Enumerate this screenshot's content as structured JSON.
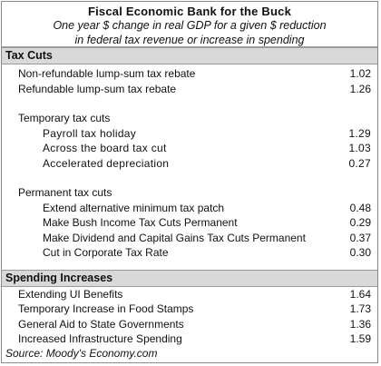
{
  "header": {
    "title": "Fiscal Economic Bank for the Buck",
    "subtitle_line1": "One year $ change in real GDP for a given $ reduction",
    "subtitle_line2": "in federal tax revenue or increase in spending"
  },
  "tax_cuts": {
    "heading": "Tax Cuts",
    "rebates": [
      {
        "label": "Non-refundable lump-sum tax rebate",
        "value": "1.02"
      },
      {
        "label": "Refundable lump-sum tax rebate",
        "value": "1.26"
      }
    ],
    "temporary": {
      "heading": "Temporary tax cuts",
      "items": [
        {
          "label": "Payroll tax holiday",
          "value": "1.29"
        },
        {
          "label": "Across the board tax cut",
          "value": "1.03"
        },
        {
          "label": "Accelerated depreciation",
          "value": "0.27"
        }
      ]
    },
    "permanent": {
      "heading": "Permanent tax cuts",
      "items": [
        {
          "label": "Extend alternative minimum tax patch",
          "value": "0.48"
        },
        {
          "label": "Make Bush Income Tax Cuts Permanent",
          "value": "0.29"
        },
        {
          "label": "Make Dividend and Capital Gains Tax Cuts Permanent",
          "value": "0.37"
        },
        {
          "label": "Cut in Corporate Tax Rate",
          "value": "0.30"
        }
      ]
    }
  },
  "spending": {
    "heading": "Spending Increases",
    "items": [
      {
        "label": "Extending UI Benefits",
        "value": "1.64"
      },
      {
        "label": "Temporary Increase in Food Stamps",
        "value": "1.73"
      },
      {
        "label": "General Aid to State Governments",
        "value": "1.36"
      },
      {
        "label": "Increased Infrastructure Spending",
        "value": "1.59"
      }
    ]
  },
  "source": "Source: Moody's Economy.com"
}
